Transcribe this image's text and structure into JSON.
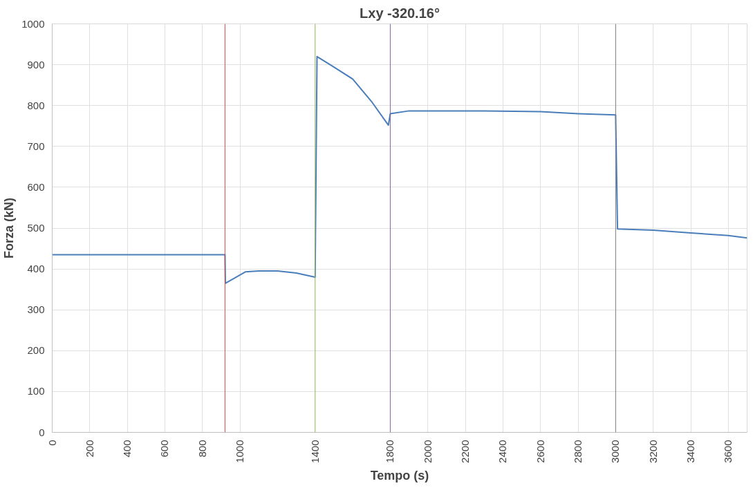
{
  "chart_data": {
    "type": "line",
    "title": "Lxy -320.16°",
    "xlabel": "Tempo (s)",
    "ylabel": "Forza (kN)",
    "series": [
      {
        "color": "#4a7ebb",
        "x": [
          0,
          200,
          400,
          600,
          800,
          920,
          922,
          1030,
          1100,
          1200,
          1300,
          1400,
          1410,
          1480,
          1600,
          1700,
          1790,
          1800,
          1900,
          2300,
          2600,
          2800,
          3000,
          3010,
          3200,
          3400,
          3600,
          3700
        ],
        "values": [
          435,
          435,
          435,
          435,
          435,
          435,
          365,
          393,
          395,
          395,
          390,
          380,
          920,
          900,
          865,
          810,
          752,
          780,
          787,
          787,
          785,
          780,
          777,
          498,
          495,
          488,
          482,
          476
        ]
      }
    ],
    "xlim": [
      0,
      3700
    ],
    "xticks": [
      0,
      200,
      400,
      600,
      800,
      1000,
      1400,
      1800,
      2000,
      2200,
      2400,
      2600,
      2800,
      3000,
      3200,
      3400,
      3600
    ],
    "ylim": [
      0,
      1000
    ],
    "yticks": [
      0,
      100,
      200,
      300,
      400,
      500,
      600,
      700,
      800,
      900,
      1000
    ],
    "ref_lines": [
      {
        "axis": "x",
        "value": 920,
        "color": "#c0504d"
      },
      {
        "axis": "x",
        "value": 1400,
        "color": "#9bbb59"
      },
      {
        "axis": "x",
        "value": 1800,
        "color": "#8064a2"
      },
      {
        "axis": "x",
        "value": 3000,
        "color": "#7f7f7f"
      }
    ],
    "grid": true,
    "marker": "none",
    "line_style": "solid"
  }
}
